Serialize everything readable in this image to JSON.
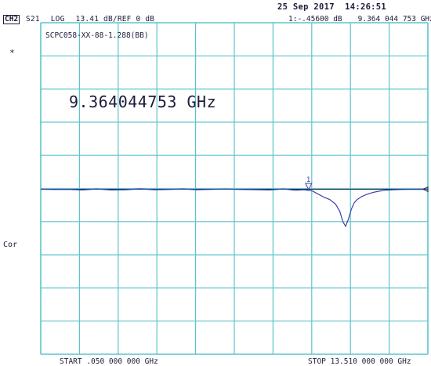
{
  "header": {
    "datetime": "25 Sep 2017  14:26:51",
    "channel": "CH2",
    "parameter": "S21",
    "format": "LOG",
    "scale": "13.41 dB/",
    "reference": "REF 0 dB",
    "marker_readout_value": "1:-.45600 dB",
    "marker_readout_freq": "9.364 044 753 GHz"
  },
  "trace_title": "SCPC058-XX-88-1.288(BB)",
  "marker_big_freq": "9.364044753 GHz",
  "left_annotations": {
    "star": "*",
    "correction": "Cor"
  },
  "footer": {
    "start": "START .050 000 000 GHz",
    "stop": "STOP 13.510 000 000 GHz"
  },
  "marker": {
    "label": "1",
    "freq_ghz": 9.364044753,
    "value_db": -0.456
  },
  "colors": {
    "grid": "#5cc4cc",
    "trace": "#3d40a6",
    "text": "#1c1c3a",
    "background": "#ffffff"
  },
  "chart_data": {
    "type": "line",
    "x_start_ghz": 0.05,
    "x_stop_ghz": 13.51,
    "scale_db_per_div": 13.41,
    "ref_db": 0,
    "ref_division": 5,
    "divisions_x": 10,
    "divisions_y": 10,
    "series": [
      {
        "x": [
          0.05,
          0.5,
          1.0,
          1.5,
          2.0,
          2.5,
          3.0,
          3.5,
          4.0,
          4.5,
          5.0,
          5.5,
          6.0,
          6.5,
          7.0,
          7.5,
          8.0,
          8.5,
          8.9,
          9.2,
          9.3639,
          9.5,
          9.7,
          9.9,
          10.1,
          10.3,
          10.45,
          10.55,
          10.65,
          10.75,
          10.85,
          10.95,
          11.05,
          11.2,
          11.4,
          11.6,
          11.8,
          12.0,
          12.3,
          12.6,
          12.9,
          13.2,
          13.51
        ],
        "y": [
          0.0,
          -0.1,
          -0.05,
          -0.3,
          0.1,
          -0.3,
          -0.2,
          0.15,
          -0.2,
          -0.1,
          0.1,
          -0.2,
          -0.05,
          0.05,
          -0.1,
          -0.15,
          -0.3,
          0.1,
          -0.4,
          -0.2,
          -0.456,
          -0.7,
          -2.0,
          -3.2,
          -4.2,
          -6.0,
          -9.0,
          -13.0,
          -15.0,
          -12.0,
          -8.0,
          -5.5,
          -4.2,
          -3.0,
          -2.0,
          -1.3,
          -0.8,
          -0.4,
          -0.2,
          -0.1,
          -0.05,
          -0.05,
          0.0
        ]
      }
    ]
  }
}
